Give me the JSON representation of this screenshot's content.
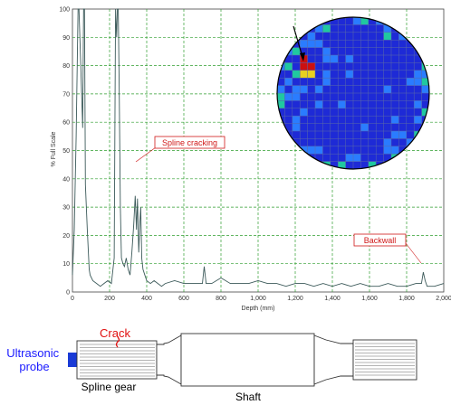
{
  "chart_data": {
    "type": "line",
    "xlabel": "Depth (mm)",
    "ylabel": "% Full Scale",
    "xlim": [
      0,
      2000
    ],
    "ylim": [
      0,
      100
    ],
    "x_ticks": [
      "0",
      "200",
      "400",
      "600",
      "800",
      "1,000",
      "1,200",
      "1,400",
      "1,600",
      "1,800",
      "2,000"
    ],
    "y_ticks": [
      "0",
      "10",
      "20",
      "30",
      "40",
      "50",
      "60",
      "70",
      "80",
      "90",
      "100"
    ],
    "grid": true,
    "line_color": "#3c5a5a",
    "grid_color": "#2e9e2e",
    "series": [
      {
        "x": [
          0,
          10,
          20,
          30,
          35,
          45,
          55,
          60,
          65,
          70,
          80,
          90,
          95,
          110,
          130,
          150,
          170,
          190,
          210,
          225,
          232,
          238,
          242,
          247,
          252,
          258,
          264,
          272,
          280,
          290,
          300,
          310,
          320,
          330,
          338,
          345,
          350,
          357,
          363,
          368,
          373,
          380,
          390,
          400,
          420,
          440,
          460,
          480,
          500,
          550,
          600,
          650,
          700,
          710,
          720,
          750,
          800,
          850,
          900,
          950,
          1000,
          1050,
          1100,
          1150,
          1200,
          1250,
          1300,
          1350,
          1400,
          1450,
          1500,
          1550,
          1600,
          1650,
          1700,
          1750,
          1800,
          1850,
          1880,
          1890,
          1900,
          1910,
          1950,
          2000
        ],
        "y": [
          6,
          22,
          55,
          100,
          100,
          80,
          58,
          100,
          100,
          38,
          22,
          8,
          6,
          4,
          3,
          2,
          3,
          4,
          3,
          12,
          100,
          90,
          100,
          100,
          70,
          30,
          12,
          10,
          9,
          12,
          8,
          6,
          14,
          24,
          34,
          22,
          33,
          14,
          24,
          30,
          12,
          8,
          6,
          4,
          3,
          4,
          3,
          2,
          3,
          4,
          3,
          3,
          3,
          9,
          3,
          3,
          5,
          3,
          3,
          3,
          4,
          3,
          3,
          2,
          3,
          3,
          2,
          3,
          2,
          3,
          2,
          3,
          2,
          2,
          3,
          2,
          2,
          3,
          3,
          7,
          4,
          2,
          2,
          3
        ]
      }
    ],
    "annotations": [
      {
        "text": "Spline cracking",
        "x": 240
      },
      {
        "text": "Backwall",
        "x": 1900
      }
    ]
  },
  "cscan": {
    "grid_size": 20,
    "background": "#1e2ad6",
    "outline": "#000000",
    "hot_colors": [
      "#cc1010",
      "#e8d020",
      "#20c8a0",
      "#2a7cff"
    ]
  },
  "diagram": {
    "crack_label": "Crack",
    "probe_label": "Ultrasonic\nprobe",
    "probe_color": "#1a3bd6",
    "spline_gear_label": "Spline gear",
    "shaft_label": "Shaft"
  }
}
